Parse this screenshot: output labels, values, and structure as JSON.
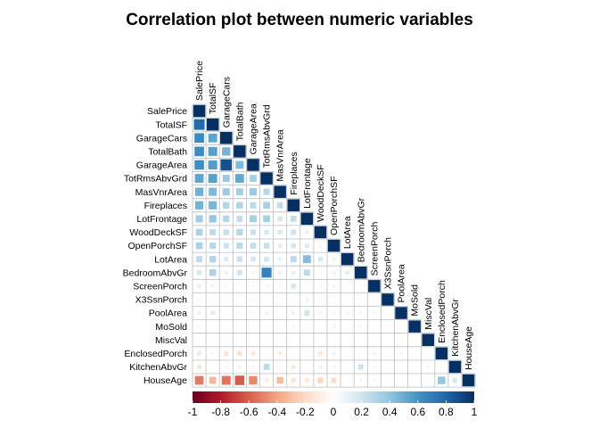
{
  "chart_data": {
    "type": "heatmap",
    "title": "Correlation plot between numeric variables",
    "variables": [
      "SalePrice",
      "TotalSF",
      "GarageCars",
      "TotalBath",
      "GarageArea",
      "TotRmsAbvGrd",
      "MasVnrArea",
      "Fireplaces",
      "LotFrontage",
      "WoodDeckSF",
      "OpenPorchSF",
      "LotArea",
      "BedroomAbvGr",
      "ScreenPorch",
      "X3SsnPorch",
      "PoolArea",
      "MoSold",
      "MiscVal",
      "EnclosedPorch",
      "KitchenAbvGr",
      "HouseAge"
    ],
    "matrix_shape": "lower-triangular",
    "values": [
      [
        1.0
      ],
      [
        0.78,
        1.0
      ],
      [
        0.64,
        0.53,
        1.0
      ],
      [
        0.63,
        0.55,
        0.47,
        1.0
      ],
      [
        0.62,
        0.56,
        0.88,
        0.44,
        1.0
      ],
      [
        0.53,
        0.54,
        0.36,
        0.52,
        0.34,
        1.0
      ],
      [
        0.48,
        0.45,
        0.36,
        0.34,
        0.37,
        0.28,
        1.0
      ],
      [
        0.47,
        0.46,
        0.3,
        0.3,
        0.27,
        0.33,
        0.25,
        1.0
      ],
      [
        0.35,
        0.38,
        0.29,
        0.25,
        0.34,
        0.33,
        0.18,
        0.25,
        1.0
      ],
      [
        0.32,
        0.26,
        0.23,
        0.29,
        0.22,
        0.17,
        0.16,
        0.2,
        0.09,
        1.0
      ],
      [
        0.32,
        0.28,
        0.21,
        0.27,
        0.24,
        0.23,
        0.13,
        0.17,
        0.15,
        0.06,
        1.0
      ],
      [
        0.26,
        0.3,
        0.15,
        0.22,
        0.18,
        0.19,
        0.1,
        0.27,
        0.43,
        0.17,
        0.08,
        1.0
      ],
      [
        0.17,
        0.31,
        0.09,
        0.2,
        0.07,
        0.68,
        0.1,
        0.11,
        0.26,
        0.05,
        0.09,
        0.12,
        1.0
      ],
      [
        0.11,
        0.08,
        0.05,
        0.02,
        0.05,
        0.06,
        0.06,
        0.18,
        0.04,
        -0.07,
        0.07,
        0.04,
        0.04,
        1.0
      ],
      [
        0.04,
        0.03,
        0.04,
        0.01,
        0.04,
        -0.01,
        0.02,
        0.01,
        0.07,
        -0.03,
        0.0,
        0.02,
        -0.02,
        -0.03,
        1.0
      ],
      [
        0.09,
        0.13,
        0.02,
        0.05,
        0.06,
        0.08,
        0.01,
        0.1,
        0.2,
        0.07,
        0.06,
        0.08,
        0.07,
        0.05,
        -0.01,
        1.0
      ],
      [
        0.05,
        0.02,
        0.04,
        0.04,
        0.03,
        0.04,
        0.0,
        0.05,
        0.01,
        0.02,
        0.07,
        0.0,
        0.05,
        0.02,
        0.03,
        -0.03,
        1.0
      ],
      [
        -0.02,
        0.01,
        -0.04,
        -0.03,
        -0.03,
        0.02,
        -0.03,
        0.0,
        0.0,
        -0.01,
        -0.02,
        0.04,
        0.01,
        0.03,
        0.0,
        0.03,
        -0.01,
        1.0
      ],
      [
        -0.13,
        -0.05,
        -0.15,
        -0.16,
        -0.12,
        0.0,
        -0.11,
        -0.02,
        0.01,
        -0.13,
        -0.09,
        -0.02,
        0.04,
        -0.08,
        -0.04,
        0.06,
        -0.03,
        0.02,
        1.0
      ],
      [
        -0.14,
        -0.02,
        -0.05,
        -0.08,
        -0.06,
        0.26,
        -0.04,
        -0.12,
        0.0,
        -0.09,
        -0.07,
        -0.02,
        0.2,
        -0.05,
        -0.02,
        -0.01,
        0.03,
        0.06,
        0.04,
        1.0
      ],
      [
        -0.52,
        -0.33,
        -0.54,
        -0.61,
        -0.48,
        -0.1,
        -0.31,
        -0.15,
        -0.12,
        -0.22,
        -0.19,
        -0.01,
        0.07,
        0.05,
        -0.03,
        0.0,
        -0.01,
        0.03,
        0.39,
        0.17,
        1.0
      ]
    ],
    "legend": {
      "ticks": [
        -1,
        -0.8,
        -0.6,
        -0.4,
        -0.2,
        0,
        0.2,
        0.4,
        0.6,
        0.8,
        1
      ],
      "tick_labels": [
        "-1",
        "-0.8",
        "-0.6",
        "-0.4",
        "-0.2",
        "0",
        "0.2",
        "0.4",
        "0.6",
        "0.8",
        "1"
      ],
      "range": [
        -1,
        1
      ],
      "placement": "bottom",
      "colors": [
        "#67001F",
        "#B2182B",
        "#D6604D",
        "#F4A582",
        "#FDDBC7",
        "#FFFFFF",
        "#D1E5F0",
        "#92C5DE",
        "#4393C3",
        "#2166AC",
        "#053061"
      ]
    }
  }
}
